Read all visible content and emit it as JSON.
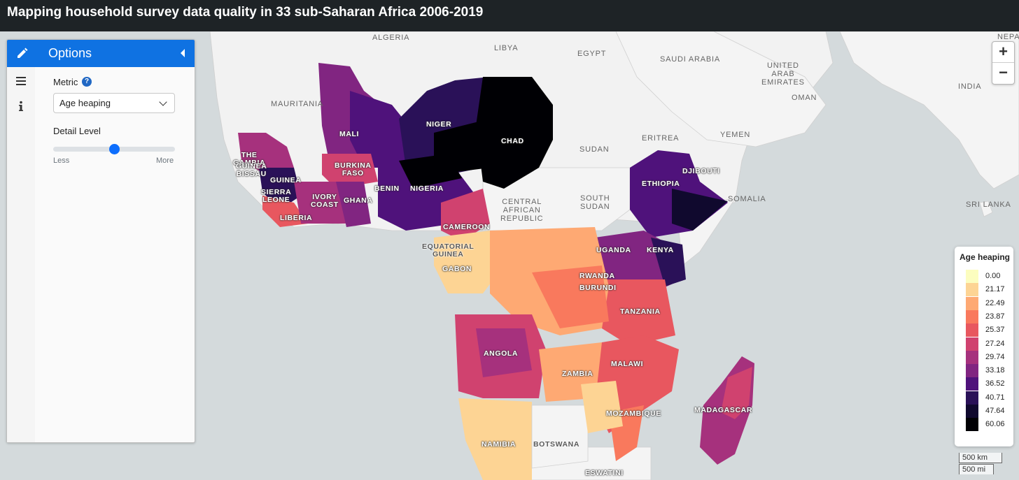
{
  "header": {
    "title": "Mapping household survey data quality in 33 sub-Saharan Africa 2006-2019"
  },
  "panel": {
    "title": "Options",
    "metric_label": "Metric",
    "metric_value": "Age heaping",
    "detail_label": "Detail Level",
    "slider_min_label": "Less",
    "slider_max_label": "More",
    "slider_level": 0.5
  },
  "zoom": {
    "in": "+",
    "out": "−"
  },
  "legend": {
    "title": "Age heaping",
    "items": [
      {
        "value": "0.00",
        "color": "#fcfdbf"
      },
      {
        "value": "21.17",
        "color": "#fdd494"
      },
      {
        "value": "22.49",
        "color": "#fea973"
      },
      {
        "value": "23.87",
        "color": "#f9795d"
      },
      {
        "value": "25.37",
        "color": "#e8575f"
      },
      {
        "value": "27.24",
        "color": "#d0426f"
      },
      {
        "value": "29.74",
        "color": "#a6317d"
      },
      {
        "value": "33.18",
        "color": "#812581"
      },
      {
        "value": "36.52",
        "color": "#4f127b"
      },
      {
        "value": "40.71",
        "color": "#2a1158"
      },
      {
        "value": "47.64",
        "color": "#10092e"
      },
      {
        "value": "60.06",
        "color": "#000004"
      }
    ]
  },
  "scale": {
    "km": "500 km",
    "mi": "500 mi"
  },
  "map_labels": {
    "algeria": "ALGERIA",
    "libya": "LIBYA",
    "egypt": "EGYPT",
    "saudi": "SAUDI ARABIA",
    "uae": "UNITED\nARAB\nEMIRATES",
    "oman": "OMAN",
    "india": "INDIA",
    "nepal": "NEPA",
    "mauritania": "MAURITANIA",
    "yemen": "YEMEN",
    "eritrea": "ERITREA",
    "sudan": "SUDAN",
    "south_sudan": "SOUTH\nSUDAN",
    "car": "CENTRAL\nAFRICAN\nREPUBLIC",
    "somalia": "SOMALIA",
    "sri_lanka": "SRI LANKA",
    "djibouti": "DJIBOUTI",
    "mali": "MALI",
    "niger": "NIGER",
    "chad": "CHAD",
    "gambia": "THE\nGAMBIA",
    "guinea_bissau": "GUINEA\nBISSAU",
    "guinea": "GUINEA",
    "burkina": "BURKINA\nFASO",
    "sierra_leone": "SIERRA\nLEONE",
    "ivory": "IVORY\nCOAST",
    "ghana": "GHANA",
    "benin": "BENIN",
    "nigeria": "NIGERIA",
    "liberia": "LIBERIA",
    "ethiopia": "ETHIOPIA",
    "cameroon": "CAMEROON",
    "eq_guinea": "EQUATORIAL\nGUINEA",
    "gabon": "GABON",
    "uganda": "UGANDA",
    "kenya": "KENYA",
    "rwanda": "RWANDA",
    "burundi": "BURUNDI",
    "tanzania": "TANZANIA",
    "angola": "ANGOLA",
    "malawi": "MALAWI",
    "zambia": "ZAMBIA",
    "mozambique": "MOZAMBIQUE",
    "madagascar": "MADAGASCAR",
    "namibia": "NAMIBIA",
    "botswana": "BOTSWANA",
    "eswatini": "ESWATINI"
  }
}
